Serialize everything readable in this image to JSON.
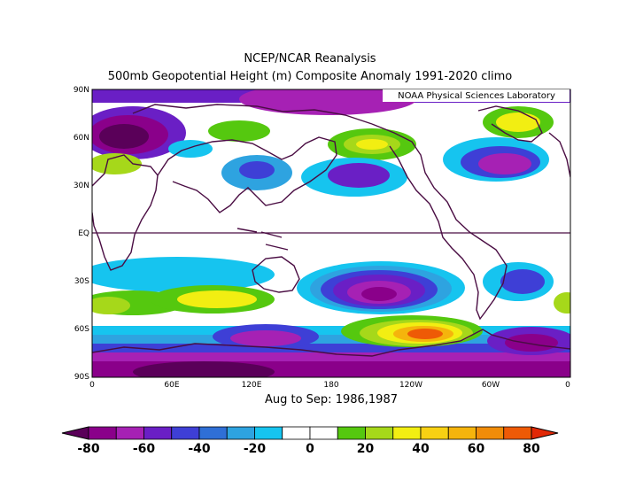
{
  "titles": {
    "line1": "NCEP/NCAR Reanalysis",
    "line2": "500mb Geopotential Height (m) Composite Anomaly 1991-2020 climo",
    "subtitle": "Aug to Sep: 1986,1987",
    "credit": "NOAA Physical Sciences Laboratory"
  },
  "map": {
    "projection": "equirectangular",
    "lon_range": [
      0,
      360
    ],
    "lat_range": [
      -90,
      90
    ],
    "lat_ticks": [
      "90N",
      "60N",
      "30N",
      "EQ",
      "30S",
      "60S",
      "90S"
    ],
    "lon_ticks": [
      "0",
      "60E",
      "120E",
      "180",
      "120W",
      "60W",
      "0"
    ],
    "equator_line": true,
    "coastline_color": "#4a0d43"
  },
  "colorbar": {
    "labels": [
      "-80",
      "-60",
      "-40",
      "-20",
      "0",
      "20",
      "40",
      "60",
      "80"
    ],
    "colors": [
      "#5a0059",
      "#8a008a",
      "#a621b4",
      "#6a1fc5",
      "#3e3fd6",
      "#2f6fd6",
      "#2ea3e0",
      "#16c4ef",
      "#ffffff",
      "#ffffff",
      "#55c80f",
      "#a6d81a",
      "#f2ee12",
      "#f8d113",
      "#f5b40c",
      "#f08c08",
      "#ee5a06",
      "#e22806"
    ]
  }
}
